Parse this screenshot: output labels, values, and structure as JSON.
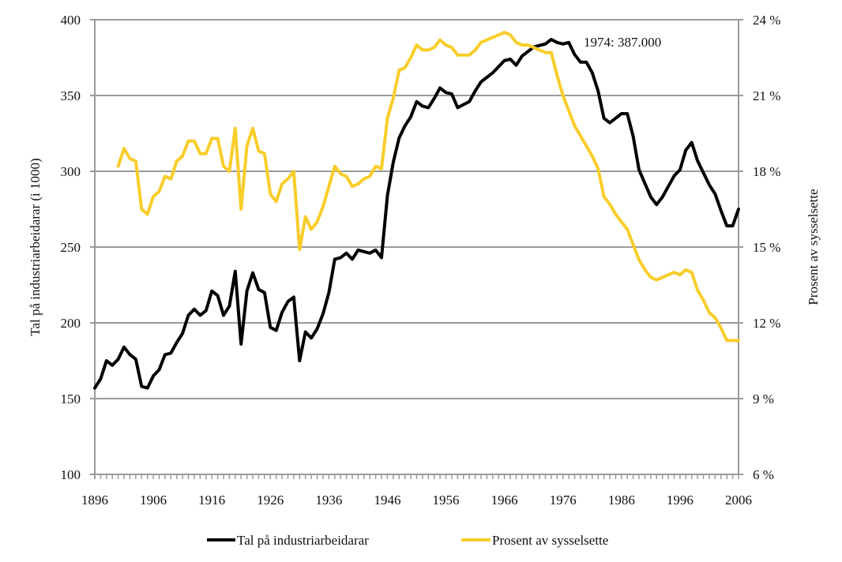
{
  "chart_data": {
    "type": "line",
    "title": "",
    "xlabel": "",
    "ylabel": "Tal på industriarbeidarar (i 1000)",
    "ylabel_right": "Prosent av sysselsette",
    "xlim": [
      1896,
      2006
    ],
    "ylim": [
      100,
      400
    ],
    "ylim_right": [
      6,
      24
    ],
    "grid": true,
    "legend_position": "bottom",
    "x_tick_labels": [
      "1896",
      "1906",
      "1916",
      "1926",
      "1936",
      "1946",
      "1956",
      "1966",
      "1976",
      "1986",
      "1996",
      "2006"
    ],
    "x_tick_values": [
      1896,
      1906,
      1916,
      1926,
      1936,
      1946,
      1956,
      1966,
      1976,
      1986,
      1996,
      2006
    ],
    "y_tick_labels": [
      "100",
      "150",
      "200",
      "250",
      "300",
      "350",
      "400"
    ],
    "y_tick_values": [
      100,
      150,
      200,
      250,
      300,
      350,
      400
    ],
    "y_right_tick_labels": [
      "6 %",
      "9 %",
      "12 %",
      "15 %",
      "18 %",
      "21 %",
      "24 %"
    ],
    "y_right_tick_values": [
      6,
      9,
      12,
      15,
      18,
      21,
      24
    ],
    "annotations": [
      {
        "text": "1974: 387.000",
        "x": 1974,
        "y": 387
      }
    ],
    "series": [
      {
        "name": "Tal på industriarbeidarar",
        "axis": "left",
        "color": "#000000",
        "x_start": 1896,
        "values": [
          157,
          163,
          175,
          172,
          176,
          184,
          179,
          176,
          158,
          157,
          165,
          169,
          179,
          180,
          187,
          193,
          205,
          209,
          205,
          208,
          221,
          218,
          205,
          211,
          234,
          186,
          221,
          233,
          222,
          220,
          197,
          195,
          207,
          214,
          217,
          175,
          194,
          190,
          196,
          206,
          220,
          242,
          243,
          246,
          242,
          248,
          247,
          246,
          248,
          243,
          284,
          306,
          322,
          330,
          336,
          346,
          343,
          342,
          348,
          355,
          352,
          351,
          342,
          344,
          346,
          353,
          359,
          362,
          365,
          369,
          373,
          374,
          370,
          376,
          379,
          382,
          383,
          384,
          387,
          385,
          384,
          385,
          377,
          372,
          372,
          365,
          353,
          335,
          332,
          335,
          338,
          338,
          323,
          301,
          292,
          283,
          278,
          283,
          290,
          297,
          301,
          314,
          319,
          307,
          299,
          291,
          285,
          274,
          264,
          264,
          275
        ]
      },
      {
        "name": "Prosent av sysselsette",
        "axis": "right",
        "color": "#F9CD2A",
        "x_start": 1900,
        "values": [
          18.2,
          18.9,
          18.5,
          18.4,
          16.5,
          16.3,
          17.0,
          17.2,
          17.8,
          17.7,
          18.4,
          18.6,
          19.2,
          19.2,
          18.7,
          18.7,
          19.3,
          19.3,
          18.2,
          18.0,
          19.7,
          16.5,
          19.0,
          19.7,
          18.8,
          18.7,
          17.1,
          16.8,
          17.5,
          17.7,
          18.0,
          14.9,
          16.2,
          15.7,
          16.0,
          16.6,
          17.4,
          18.2,
          17.9,
          17.8,
          17.4,
          17.5,
          17.7,
          17.8,
          18.2,
          18.1,
          20.1,
          20.9,
          22.0,
          22.1,
          22.5,
          23.0,
          22.8,
          22.8,
          22.9,
          23.2,
          23.0,
          22.9,
          22.6,
          22.6,
          22.6,
          22.8,
          23.1,
          23.2,
          23.3,
          23.4,
          23.5,
          23.4,
          23.1,
          23.0,
          23.0,
          22.9,
          22.8,
          22.7,
          22.7,
          21.8,
          21.0,
          20.4,
          19.8,
          19.4,
          19.0,
          18.6,
          18.1,
          17.0,
          16.7,
          16.3,
          16.0,
          15.7,
          15.1,
          14.5,
          14.1,
          13.8,
          13.7,
          13.8,
          13.9,
          14.0,
          13.9,
          14.1,
          14.0,
          13.3,
          12.9,
          12.4,
          12.2,
          11.8,
          11.3,
          11.3,
          11.3
        ]
      }
    ]
  },
  "colors": {
    "grid": "#9a9a9a",
    "axis": "#9a9a9a",
    "series_black": "#000000",
    "series_yellow": "#F9CD2A"
  }
}
